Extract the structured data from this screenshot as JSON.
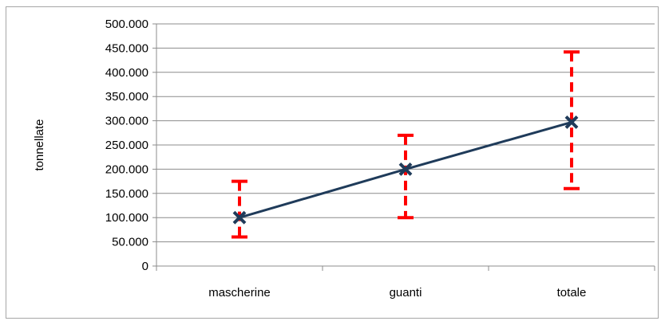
{
  "chart_data": {
    "type": "line",
    "title": "",
    "xlabel": "",
    "ylabel": "tonnellate",
    "categories": [
      "mascherine",
      "guanti",
      "totale"
    ],
    "series": [
      {
        "values": [
          100000,
          200000,
          297000
        ],
        "error_low": [
          60000,
          100000,
          160000
        ],
        "error_high": [
          175000,
          270000,
          442000
        ],
        "line_color": "#1f3b5a",
        "marker": "x",
        "error_bar_color": "#ff0000",
        "error_bar_style": "dashed"
      }
    ],
    "ylim": [
      0,
      500000
    ],
    "yticks": [
      0,
      50000,
      100000,
      150000,
      200000,
      250000,
      300000,
      350000,
      400000,
      450000,
      500000
    ],
    "ytick_labels": [
      "0",
      "50.000",
      "100.000",
      "150.000",
      "200.000",
      "250.000",
      "300.000",
      "350.000",
      "400.000",
      "450.000",
      "500.000"
    ],
    "grid": true,
    "legend": "none"
  }
}
